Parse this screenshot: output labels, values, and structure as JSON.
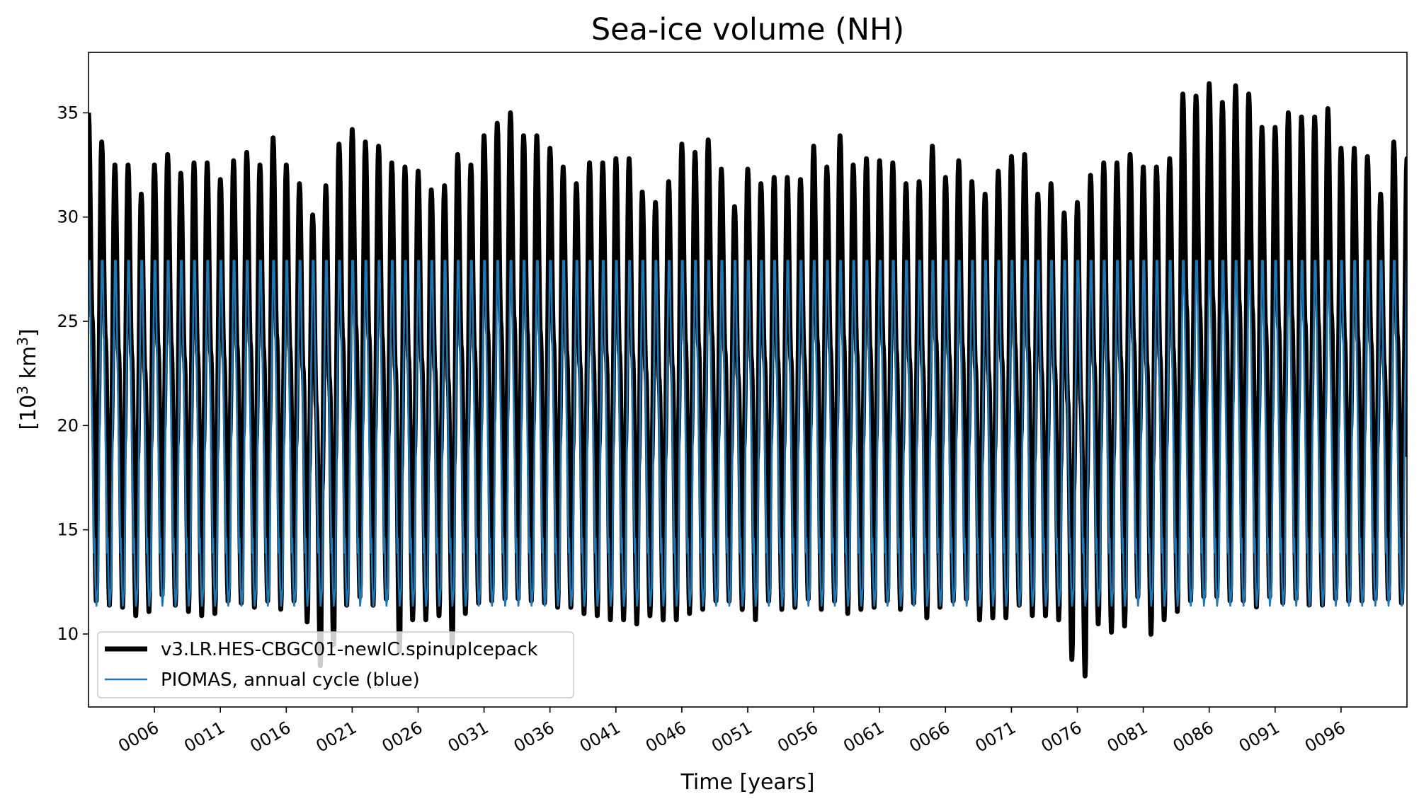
{
  "chart_data": {
    "type": "line",
    "title": "Sea-ice volume (NH)",
    "xlabel": "Time [years]",
    "ylabel_base": "[10",
    "ylabel_sup1": "3",
    "ylabel_mid": " km",
    "ylabel_sup2": "3",
    "ylabel_end": "]",
    "xlim": [
      1,
      101
    ],
    "ylim": [
      6.5,
      37.9
    ],
    "x_ticks": [
      6,
      11,
      16,
      21,
      26,
      31,
      36,
      41,
      46,
      51,
      56,
      61,
      66,
      71,
      76,
      81,
      86,
      91,
      96
    ],
    "x_tick_labels": [
      "0006",
      "0011",
      "0016",
      "0021",
      "0026",
      "0031",
      "0036",
      "0041",
      "0046",
      "0051",
      "0056",
      "0061",
      "0066",
      "0071",
      "0076",
      "0081",
      "0086",
      "0091",
      "0096"
    ],
    "y_ticks": [
      10,
      15,
      20,
      25,
      30,
      35
    ],
    "y_tick_labels": [
      "10",
      "15",
      "20",
      "25",
      "30",
      "35"
    ],
    "grid": false,
    "legend_position": "lower-left",
    "series": [
      {
        "name": "v3.LR.HES-CBGC01-newIC.spinupIcepack",
        "color": "#000000",
        "annual_max": [
          35.0,
          33.6,
          32.5,
          32.5,
          31.1,
          32.5,
          33.0,
          32.1,
          32.6,
          32.6,
          31.8,
          32.7,
          33.1,
          32.5,
          33.8,
          32.5,
          31.6,
          30.1,
          31.5,
          33.5,
          34.2,
          33.6,
          33.4,
          32.6,
          32.4,
          32.2,
          31.3,
          31.5,
          33.0,
          32.5,
          33.9,
          34.5,
          35.0,
          33.9,
          33.9,
          33.3,
          32.4,
          31.6,
          32.6,
          32.6,
          32.8,
          32.8,
          31.2,
          30.7,
          31.7,
          33.5,
          33.1,
          33.7,
          32.3,
          30.5,
          32.3,
          31.6,
          31.9,
          31.9,
          31.8,
          33.4,
          32.4,
          33.9,
          32.5,
          32.8,
          32.7,
          32.6,
          31.6,
          31.7,
          33.4,
          31.9,
          32.7,
          31.7,
          31.1,
          32.2,
          32.9,
          33.0,
          31.1,
          31.6,
          30.2,
          30.7,
          32.0,
          32.6,
          32.6,
          33.0,
          32.4,
          32.4,
          32.8,
          35.9,
          35.8,
          36.4,
          35.5,
          36.3,
          35.9,
          34.3,
          34.3,
          35.0,
          34.8,
          34.8,
          35.2,
          33.3,
          33.3,
          32.9,
          31.1,
          33.6,
          32.8
        ],
        "annual_min": [
          11.5,
          11.3,
          11.2,
          10.8,
          11.0,
          11.8,
          11.3,
          11.0,
          10.8,
          10.9,
          11.5,
          11.4,
          11.2,
          11.5,
          11.1,
          11.5,
          10.5,
          8.4,
          9.4,
          11.3,
          11.7,
          11.3,
          11.6,
          9.1,
          10.6,
          10.6,
          10.8,
          9.3,
          10.9,
          11.4,
          11.5,
          11.6,
          11.6,
          11.5,
          11.4,
          11.2,
          11.2,
          10.9,
          10.8,
          10.6,
          10.6,
          10.4,
          10.8,
          10.6,
          10.6,
          10.9,
          11.1,
          11.5,
          11.5,
          11.1,
          10.6,
          11.5,
          11.1,
          11.2,
          11.6,
          11.1,
          11.5,
          10.9,
          11.1,
          11.2,
          11.5,
          11.1,
          11.4,
          10.7,
          11.2,
          11.5,
          11.6,
          10.6,
          10.7,
          10.7,
          11.3,
          10.8,
          10.8,
          10.6,
          8.7,
          7.9,
          10.4,
          10.0,
          10.3,
          11.7,
          9.9,
          10.6,
          11.0,
          11.5,
          11.7,
          11.7,
          11.5,
          11.5,
          11.2,
          11.7,
          11.4,
          11.6,
          11.3,
          11.3,
          11.6,
          11.5,
          11.5,
          11.6,
          11.6,
          11.4,
          11.4
        ]
      },
      {
        "name": "PIOMAS, annual cycle (blue)",
        "color": "#1f77b4",
        "annual_max": 27.9,
        "annual_min": 11.35,
        "secondary_min": 13.9
      }
    ]
  }
}
